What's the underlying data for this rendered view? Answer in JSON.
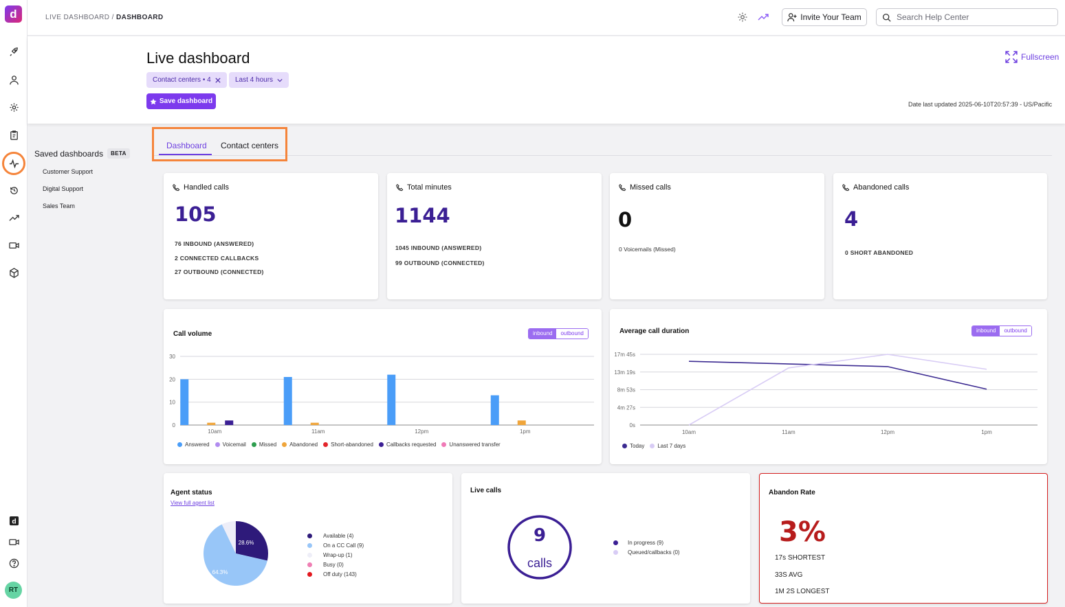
{
  "app": {
    "logo_letter": "d",
    "user_initials": "RT"
  },
  "breadcrumb": {
    "parent": "LIVE DASHBOARD",
    "separator": " / ",
    "current": "DASHBOARD"
  },
  "topbar": {
    "invite_label": "Invite Your Team",
    "search_placeholder": "Search Help Center"
  },
  "header": {
    "title": "Live dashboard",
    "filter_contact_centers": "Contact centers • 4",
    "filter_time": "Last 4 hours",
    "save_label": "Save dashboard",
    "fullscreen_label": "Fullscreen",
    "date_updated": "Date last updated 2025-06-10T20:57:39 - US/Pacific"
  },
  "saved_dashboards": {
    "title": "Saved dashboards",
    "badge": "BETA",
    "items": [
      "Customer Support",
      "Digital Support",
      "Sales Team"
    ]
  },
  "tabs": [
    {
      "label": "Dashboard",
      "active": true
    },
    {
      "label": "Contact centers",
      "active": false
    }
  ],
  "stats": [
    {
      "title": "Handled calls",
      "value": "105",
      "lines": [
        "76 INBOUND (ANSWERED)",
        "2 CONNECTED CALLBACKS",
        "27 OUTBOUND (CONNECTED)"
      ]
    },
    {
      "title": "Total minutes",
      "value": "1144",
      "lines": [
        "1045 INBOUND (ANSWERED)",
        "99 OUTBOUND (CONNECTED)"
      ]
    },
    {
      "title": "Missed calls",
      "value": "0",
      "lines": [
        "0 Voicemails (Missed)"
      ]
    },
    {
      "title": "Abandoned calls",
      "value": "4",
      "lines": [
        "0 SHORT ABANDONED"
      ]
    }
  ],
  "toggle": {
    "on": "inbound",
    "off": "outbound"
  },
  "colors": {
    "answered": "#4a9df8",
    "voicemail": "#b18cf0",
    "missed": "#2e9e4f",
    "abandoned": "#f0a53a",
    "short_abandoned": "#e3262b",
    "callbacks": "#3b1f94",
    "unanswered_transfer": "#f07ab7",
    "today": "#3b2a91",
    "last7": "#d8ccf5",
    "accent": "#7c3aed"
  },
  "chart_data": [
    {
      "type": "bar",
      "title": "Call volume",
      "categories": [
        "10am",
        "11am",
        "12pm",
        "1pm"
      ],
      "ylim": [
        0,
        30
      ],
      "yticks": [
        0,
        10,
        20,
        30
      ],
      "series": [
        {
          "name": "Answered",
          "values": [
            20,
            21,
            22,
            13
          ]
        },
        {
          "name": "Voicemail",
          "values": [
            0,
            0,
            0,
            0
          ]
        },
        {
          "name": "Missed",
          "values": [
            0,
            0,
            0,
            0
          ]
        },
        {
          "name": "Abandoned",
          "values": [
            1,
            1,
            0,
            2
          ]
        },
        {
          "name": "Short-abandoned",
          "values": [
            0,
            0,
            0,
            0
          ]
        },
        {
          "name": "Callbacks requested",
          "values": [
            2,
            0,
            0,
            0
          ]
        },
        {
          "name": "Unanswered transfer",
          "values": [
            0,
            0,
            0,
            0
          ]
        }
      ],
      "grid": true,
      "legend": "bottom"
    },
    {
      "type": "line",
      "title": "Average call duration",
      "categories": [
        "10am",
        "11am",
        "12pm",
        "1pm"
      ],
      "yticks": [
        "0s",
        "4m 27s",
        "8m 53s",
        "13m 19s",
        "17m 45s"
      ],
      "ylim_seconds": [
        0,
        1065
      ],
      "series": [
        {
          "name": "Today",
          "values_seconds": [
            960,
            920,
            880,
            540
          ]
        },
        {
          "name": "Last 7 days",
          "values_seconds": [
            0,
            860,
            1065,
            840
          ]
        }
      ],
      "grid": true,
      "legend": "bottom"
    },
    {
      "type": "pie",
      "title": "Agent status",
      "slices": [
        {
          "name": "Available",
          "count": 4,
          "percent": 28.6
        },
        {
          "name": "On a CC Call",
          "count": 9,
          "percent": 64.3
        },
        {
          "name": "Wrap-up",
          "count": 1,
          "percent": 7.1
        },
        {
          "name": "Busy",
          "count": 0,
          "percent": 0
        },
        {
          "name": "Off duty",
          "count": 143,
          "percent": 0
        }
      ],
      "legend": "right"
    }
  ],
  "agent_status": {
    "link": "View full agent list",
    "legend": [
      "Available (4)",
      "On a CC Call (9)",
      "Wrap-up (1)",
      "Busy (0)",
      "Off duty (143)"
    ],
    "slice_labels": [
      "28.6%",
      "64.3%"
    ]
  },
  "live_calls": {
    "title": "Live calls",
    "count": "9",
    "unit": "calls",
    "legend": [
      "In progress (9)",
      "Queued/callbacks (0)"
    ]
  },
  "abandon_rate": {
    "title": "Abandon Rate",
    "value": "3%",
    "shortest": "17s SHORTEST",
    "avg": "33S AVG",
    "longest": "1M 2S LONGEST"
  },
  "icons": [
    "rocket-icon",
    "person-icon",
    "gear-icon",
    "clipboard-icon",
    "pulse-icon",
    "history-icon",
    "trending-icon",
    "video-icon",
    "cube-icon",
    "d-app-icon",
    "camera-icon",
    "help-icon"
  ]
}
